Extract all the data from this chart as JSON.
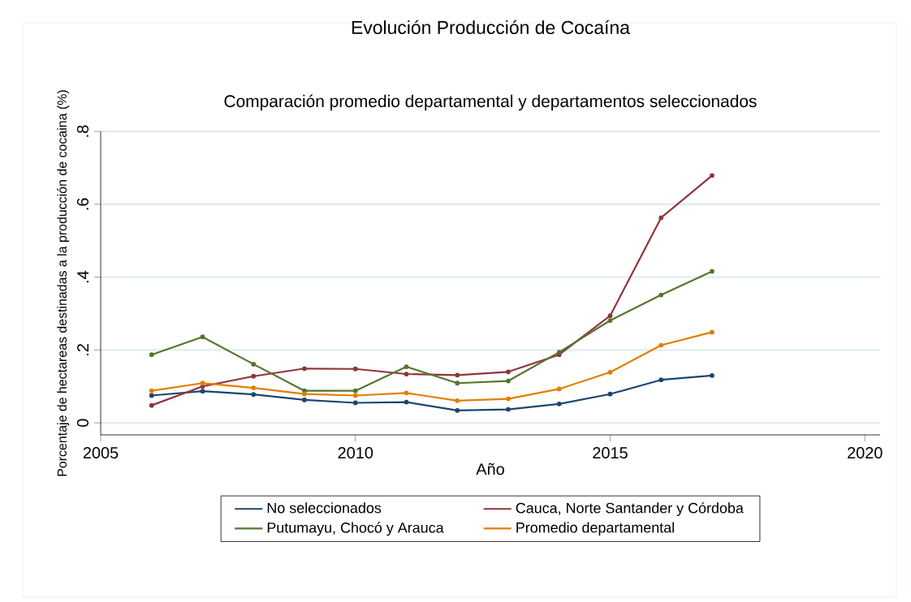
{
  "chart_data": {
    "type": "line",
    "title": "Evolución Producción de Cocaína",
    "subtitle": "Comparación promedio departamental y departamentos seleccionados",
    "xlabel": "Año",
    "ylabel": "Porcentaje de hectareas destinadas a la producción de cocaina (%)",
    "x": [
      2006,
      2007,
      2008,
      2009,
      2010,
      2011,
      2012,
      2013,
      2014,
      2015,
      2016,
      2017
    ],
    "series": [
      {
        "name": "No seleccionados",
        "color": "#1a476f",
        "values": [
          0.075,
          0.087,
          0.078,
          0.063,
          0.055,
          0.057,
          0.034,
          0.037,
          0.052,
          0.079,
          0.118,
          0.13
        ]
      },
      {
        "name": "Cauca, Norte Santander y Córdoba",
        "color": "#90353b",
        "values": [
          0.048,
          0.1,
          0.128,
          0.149,
          0.148,
          0.134,
          0.131,
          0.14,
          0.187,
          0.294,
          0.563,
          0.679
        ]
      },
      {
        "name": "Putumayu, Chocó y Arauca",
        "color": "#55752f",
        "values": [
          0.187,
          0.236,
          0.161,
          0.088,
          0.088,
          0.154,
          0.109,
          0.115,
          0.194,
          0.281,
          0.351,
          0.416
        ]
      },
      {
        "name": "Promedio departamental",
        "color": "#e37e00",
        "values": [
          0.088,
          0.109,
          0.096,
          0.079,
          0.075,
          0.082,
          0.061,
          0.066,
          0.093,
          0.139,
          0.213,
          0.249
        ]
      }
    ],
    "xlim": [
      2005,
      2020.3
    ],
    "ylim": [
      -0.033,
      0.8
    ],
    "xticks": [
      2005,
      2010,
      2015,
      2020
    ],
    "yticks": [
      0,
      {
        "value": 0.2,
        "label": ".2"
      },
      {
        "value": 0.4,
        "label": ".4"
      },
      {
        "value": 0.6,
        "label": ".6"
      },
      {
        "value": 0.8,
        "label": ".8"
      }
    ],
    "grid": "y",
    "legend": "bottom",
    "marker": "circle",
    "line_style": "solid"
  }
}
